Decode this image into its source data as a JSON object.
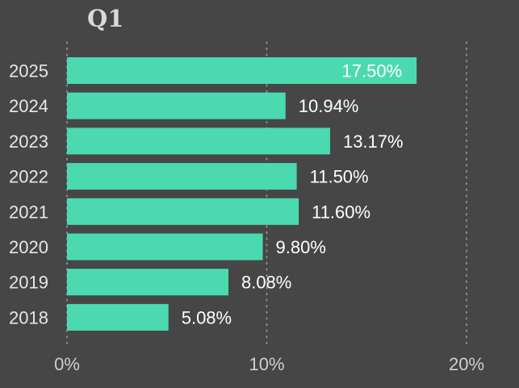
{
  "chart_data": {
    "type": "bar",
    "orientation": "horizontal",
    "title": "Q1",
    "categories": [
      "2025",
      "2024",
      "2023",
      "2022",
      "2021",
      "2020",
      "2019",
      "2018"
    ],
    "values": [
      17.5,
      10.94,
      13.17,
      11.5,
      11.6,
      9.8,
      8.08,
      5.08
    ],
    "data_labels": [
      "17.50%",
      "10.94%",
      "13.17%",
      "11.50%",
      "11.60%",
      "9.80%",
      "8.08%",
      "5.08%"
    ],
    "xlim": [
      0,
      20
    ],
    "x_ticks": [
      0,
      10,
      20
    ],
    "x_tick_labels": [
      "0%",
      "10%",
      "20%"
    ],
    "xlabel": "",
    "ylabel": "",
    "grid": "vertical dotted",
    "legend": "none",
    "colors": {
      "background": "#464646",
      "bar": "#4bdab0",
      "text": "#e6e6e6",
      "grid": "#9a9a9a"
    }
  }
}
